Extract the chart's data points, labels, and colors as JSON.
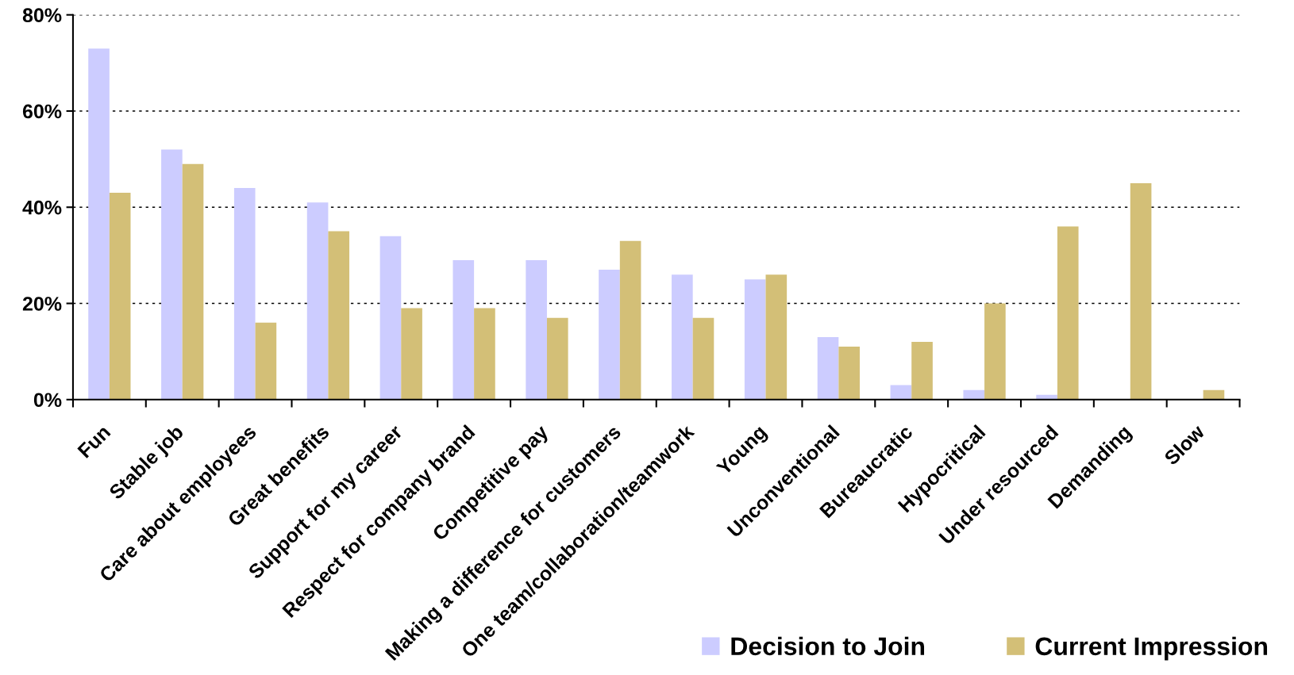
{
  "chart_data": {
    "type": "bar",
    "categories": [
      "Fun",
      "Stable job",
      "Care about employees",
      "Great benefits",
      "Support for my career",
      "Respect for company brand",
      "Competitive pay",
      "Making a difference for customers",
      "One team/collaboration/teamwork",
      "Young",
      "Unconventional",
      "Bureaucratic",
      "Hypocritical",
      "Under resourced",
      "Demanding",
      "Slow"
    ],
    "series": [
      {
        "name": "Decision to Join",
        "color": "#ccccff",
        "values": [
          73,
          52,
          44,
          41,
          34,
          29,
          29,
          27,
          26,
          25,
          13,
          3,
          2,
          1,
          0,
          0
        ]
      },
      {
        "name": "Current Impression",
        "color": "#d3bf77",
        "values": [
          43,
          49,
          16,
          35,
          19,
          19,
          17,
          33,
          17,
          26,
          11,
          12,
          20,
          36,
          45,
          2
        ]
      }
    ],
    "ylim": [
      0,
      80
    ],
    "yticks": [
      {
        "value": 0,
        "label": "0%"
      },
      {
        "value": 20,
        "label": "20%"
      },
      {
        "value": 40,
        "label": "40%"
      },
      {
        "value": 60,
        "label": "60%"
      },
      {
        "value": 80,
        "label": "80%"
      }
    ],
    "grid": "y",
    "legend": "bottom right"
  }
}
